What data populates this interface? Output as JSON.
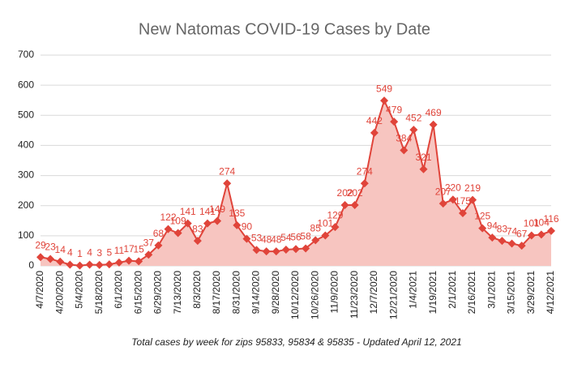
{
  "chart_data": {
    "type": "area",
    "title": "New Natomas COVID-19 Cases by Date",
    "caption": "Total cases by week for zips 95833, 95834 & 95835 - Updated April 12, 2021",
    "categories": [
      "4/7/2020",
      null,
      "4/20/2020",
      null,
      "5/4/2020",
      null,
      "5/18/2020",
      null,
      "6/1/2020",
      null,
      "6/15/2020",
      null,
      "6/29/2020",
      null,
      "7/13/2020",
      null,
      "8/3/2020",
      null,
      "8/17/2020",
      null,
      "8/31/2020",
      null,
      "9/14/2020",
      null,
      "9/28/2020",
      null,
      "10/12/2020",
      null,
      "10/26/2020",
      null,
      "11/9/2020",
      null,
      "11/23/2020",
      null,
      "12/7/2020",
      null,
      "12/21/2020",
      null,
      "1/4/2021",
      null,
      "1/19/2021",
      null,
      "2/1/2021",
      null,
      "2/16/2021",
      null,
      "3/1/2021",
      null,
      "3/15/2021",
      null,
      "3/29/2021",
      null,
      "4/12/2021"
    ],
    "values": [
      29,
      23,
      14,
      4,
      1,
      4,
      3,
      5,
      11,
      17,
      15,
      37,
      68,
      122,
      109,
      141,
      83,
      141,
      149,
      274,
      135,
      90,
      53,
      48,
      48,
      54,
      56,
      58,
      85,
      101,
      129,
      202,
      202,
      274,
      442,
      549,
      479,
      384,
      452,
      321,
      469,
      207,
      220,
      175,
      219,
      125,
      94,
      83,
      74,
      67,
      101,
      104,
      116
    ],
    "color": "#e0443a",
    "fill": "#f7c5c0",
    "ylim": [
      0,
      700
    ],
    "yticks": [
      0,
      100,
      200,
      300,
      400,
      500,
      600,
      700
    ],
    "grid": true
  }
}
